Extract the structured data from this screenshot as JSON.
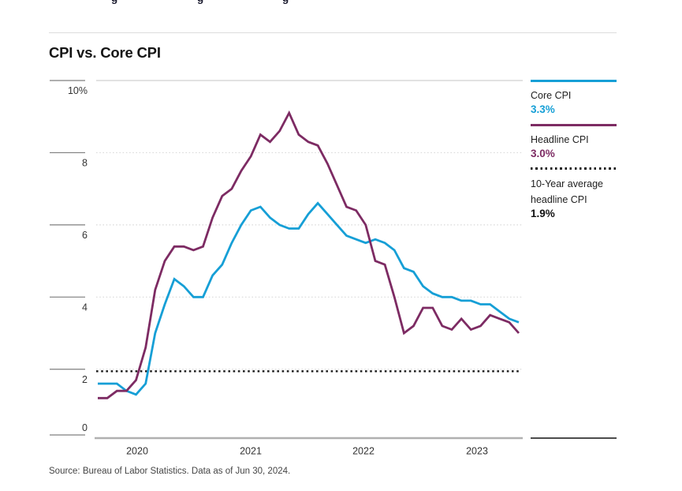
{
  "page": {
    "top_clipped_fragments": [
      "g",
      "g",
      "g"
    ],
    "title": "CPI vs. Core CPI",
    "source": "Source: Bureau of Labor Statistics. Data as of Jun 30, 2024."
  },
  "legend": {
    "items": [
      {
        "label": "Core CPI",
        "value": "3.3%",
        "color": "#169fd6",
        "line_style": "solid"
      },
      {
        "label": "Headline CPI",
        "value": "3.0%",
        "color": "#7d2b63",
        "line_style": "solid"
      },
      {
        "label": "10-Year average headline CPI",
        "value": "1.9%",
        "color": "#1a1a1a",
        "line_style": "dotted"
      }
    ]
  },
  "chart_data": {
    "type": "line",
    "title": "CPI vs. Core CPI",
    "x_unit": "month",
    "x_start": "2020-10",
    "x_end": "2024-06",
    "x_tick_labels": [
      "2020",
      "2021",
      "2022",
      "2023"
    ],
    "y_ticks": [
      10,
      8,
      6,
      4,
      2,
      0
    ],
    "y_tick_labels": [
      "10%",
      "8",
      "6",
      "4",
      "2",
      "0"
    ],
    "ylim": [
      0,
      10
    ],
    "grid": "dotted-horizontal",
    "legend_position": "right",
    "average_line": {
      "label": "10-Year average headline CPI",
      "value": 1.9,
      "style": "dotted",
      "color": "#1a1a1a"
    },
    "series": [
      {
        "name": "Core CPI",
        "color": "#169fd6",
        "latest_label": "3.3%",
        "values": [
          1.6,
          1.6,
          1.6,
          1.4,
          1.3,
          1.6,
          3.0,
          3.8,
          4.5,
          4.3,
          4.0,
          4.0,
          4.6,
          4.9,
          5.5,
          6.0,
          6.4,
          6.5,
          6.2,
          6.0,
          5.9,
          5.9,
          6.3,
          6.6,
          6.3,
          6.0,
          5.7,
          5.6,
          5.5,
          5.6,
          5.5,
          5.3,
          4.8,
          4.7,
          4.3,
          4.1,
          4.0,
          4.0,
          3.9,
          3.9,
          3.8,
          3.8,
          3.6,
          3.4,
          3.3
        ]
      },
      {
        "name": "Headline CPI",
        "color": "#7d2b63",
        "latest_label": "3.0%",
        "values": [
          1.2,
          1.2,
          1.4,
          1.4,
          1.7,
          2.6,
          4.2,
          5.0,
          5.4,
          5.4,
          5.3,
          5.4,
          6.2,
          6.8,
          7.0,
          7.5,
          7.9,
          8.5,
          8.3,
          8.6,
          9.1,
          8.5,
          8.3,
          8.2,
          7.7,
          7.1,
          6.5,
          6.4,
          6.0,
          5.0,
          4.9,
          4.0,
          3.0,
          3.2,
          3.7,
          3.7,
          3.2,
          3.1,
          3.4,
          3.1,
          3.2,
          3.5,
          3.4,
          3.3,
          3.0
        ]
      }
    ]
  }
}
